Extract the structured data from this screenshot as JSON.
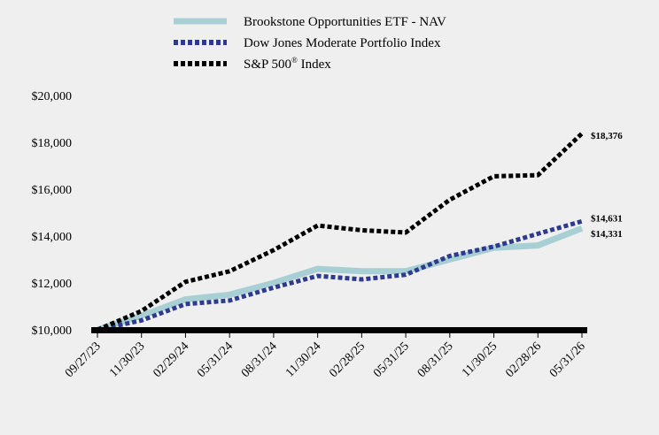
{
  "chart_data": {
    "type": "line",
    "categories": [
      "09/27/23",
      "11/30/23",
      "02/29/24",
      "05/31/24",
      "08/31/24",
      "11/30/24",
      "02/28/25",
      "05/31/25",
      "08/31/25",
      "11/30/25",
      "02/28/26",
      "05/31/26"
    ],
    "ylim": [
      10000,
      20000
    ],
    "yticks": [
      10000,
      12000,
      14000,
      16000,
      18000,
      20000
    ],
    "ytick_labels": [
      "$10,000",
      "$12,000",
      "$14,000",
      "$16,000",
      "$18,000",
      "$20,000"
    ],
    "legend_position": "top",
    "grid": false,
    "series": [
      {
        "name": "Brookstone Opportunities ETF - NAV",
        "color": "#a8d0d4",
        "style": "solid",
        "values": [
          10000,
          10600,
          11300,
          11500,
          12000,
          12600,
          12500,
          12500,
          13000,
          13500,
          13600,
          14331
        ],
        "end_label": "$14,331"
      },
      {
        "name": "Dow Jones Moderate Portfolio Index",
        "color": "#2e3a8c",
        "style": "dotted",
        "values": [
          10000,
          10400,
          11100,
          11250,
          11800,
          12300,
          12150,
          12350,
          13150,
          13550,
          14100,
          14631
        ],
        "end_label": "$14,631"
      },
      {
        "name": "S&P 500",
        "name_sup": "®",
        "name_suffix": " Index",
        "color": "#000000",
        "style": "dotted",
        "values": [
          10000,
          10800,
          12050,
          12500,
          13400,
          14450,
          14250,
          14150,
          15550,
          16550,
          16600,
          18376
        ],
        "end_label": "$18,376"
      }
    ]
  }
}
